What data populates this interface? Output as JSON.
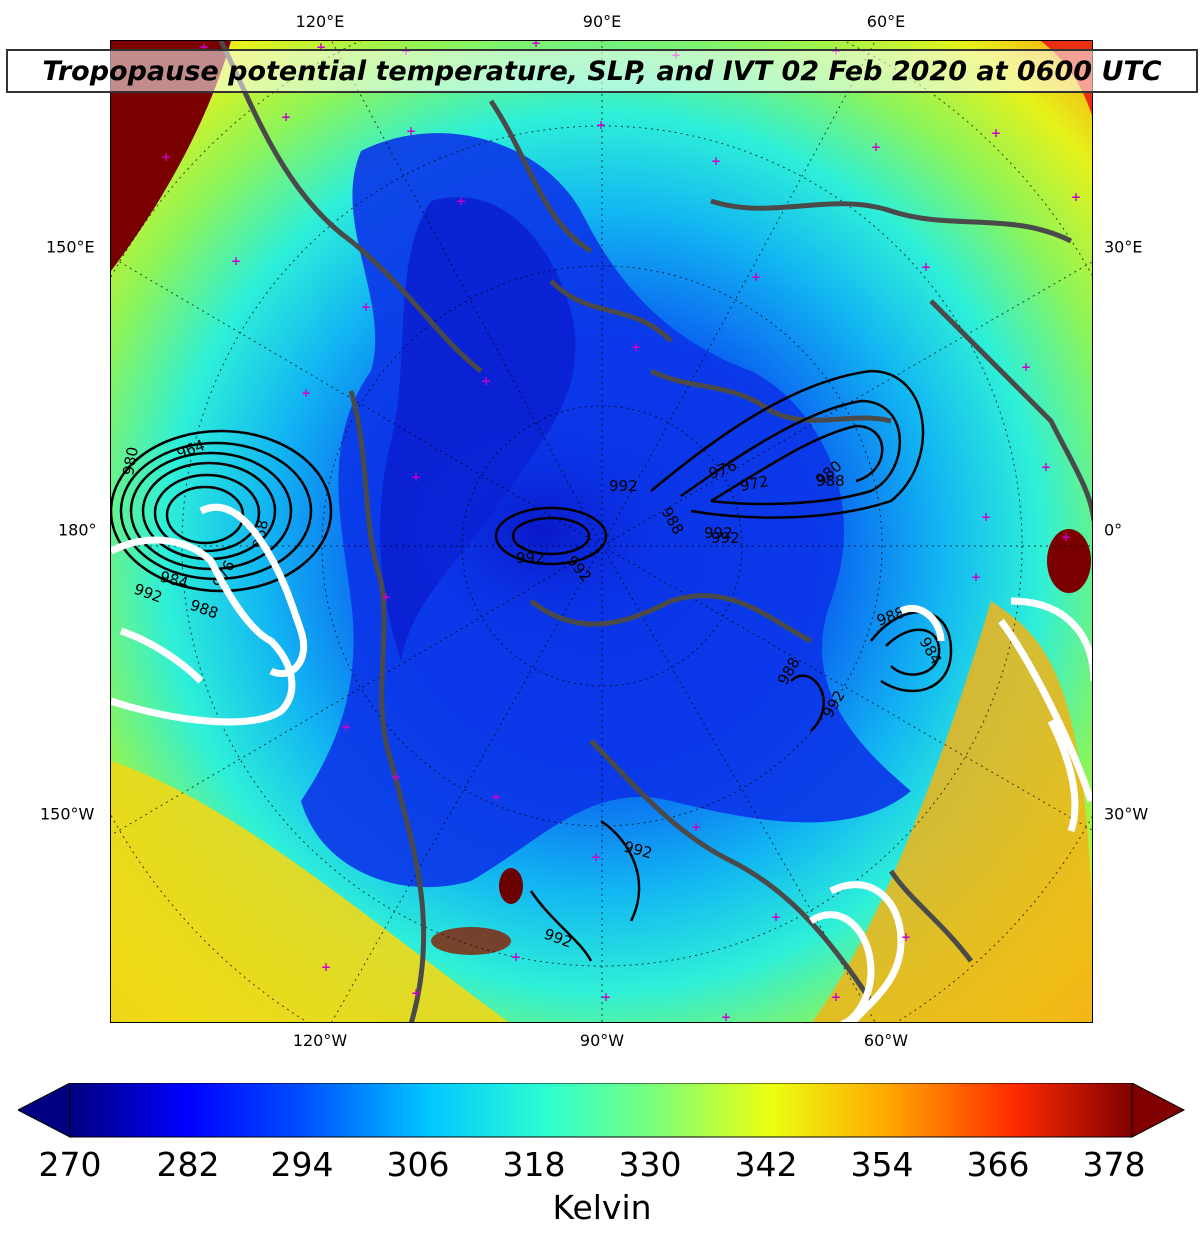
{
  "title": "Tropopause potential temperature, SLP, and IVT 02 Feb 2020 at 0600 UTC",
  "map": {
    "top_lon_labels": [
      "120°E",
      "90°E",
      "60°E"
    ],
    "bottom_lon_labels": [
      "120°W",
      "90°W",
      "60°W"
    ],
    "left_labels": [
      "150°E",
      "180°",
      "150°W"
    ],
    "right_labels": [
      "30°E",
      "0°",
      "30°W"
    ],
    "slp_contour_labels": [
      "992",
      "988",
      "976",
      "972",
      "992",
      "980",
      "980",
      "964",
      "984",
      "988",
      "976",
      "968",
      "992",
      "984",
      "988",
      "992",
      "988",
      "992",
      "992",
      "992",
      "992",
      "988",
      "992"
    ],
    "colors": {
      "contour_line": "#000000",
      "ivt_contour": "#ffffff",
      "coastline": "#4a4a4a",
      "station_marker": "#cc00cc"
    }
  },
  "colorbar": {
    "ticks": [
      "270",
      "282",
      "294",
      "306",
      "318",
      "330",
      "342",
      "354",
      "366",
      "378"
    ],
    "label": "Kelvin",
    "min": 270,
    "max": 378,
    "colormap": "jet",
    "extend": "both"
  }
}
